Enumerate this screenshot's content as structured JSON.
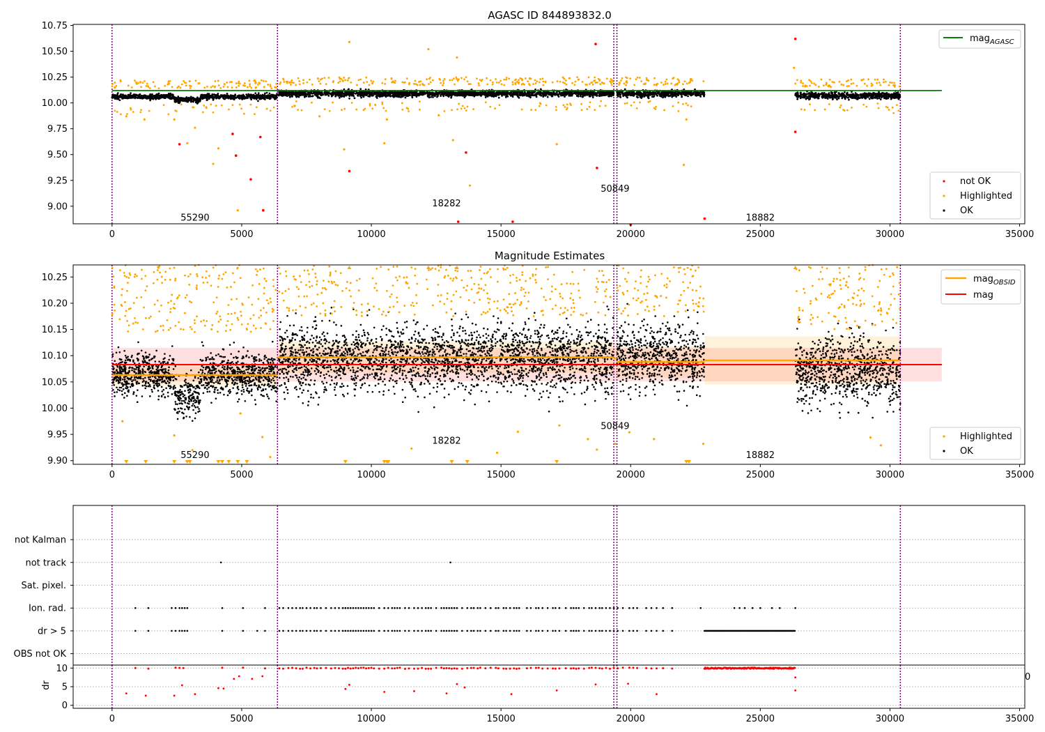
{
  "chart_data": [
    {
      "type": "scatter",
      "title": "AGASC ID 844893832.0",
      "xlim": [
        -1500,
        35200
      ],
      "ylim": [
        8.83,
        10.76
      ],
      "xticks": [
        0,
        5000,
        10000,
        15000,
        20000,
        25000,
        30000,
        35000
      ],
      "yticks": [
        9.0,
        9.25,
        9.5,
        9.75,
        10.0,
        10.25,
        10.5,
        10.75
      ],
      "ytick_labels": [
        "9.00",
        "9.25",
        "9.50",
        "9.75",
        "10.00",
        "10.25",
        "10.50",
        "10.75"
      ],
      "obs_boundaries": [
        0,
        6380,
        19350,
        19470,
        30400
      ],
      "obsid_labels": [
        {
          "text": "55290",
          "x": 3200,
          "y": 8.86
        },
        {
          "text": "18282",
          "x": 12900,
          "y": 9.0
        },
        {
          "text": "50849",
          "x": 19400,
          "y": 9.14
        },
        {
          "text": "18882",
          "x": 25000,
          "y": 8.86
        }
      ],
      "lines": [
        {
          "name": "mag_AGASC",
          "x": [
            0,
            32000
          ],
          "y": [
            10.12,
            10.12
          ],
          "color": "#008000"
        }
      ],
      "legend": [
        "not OK",
        "Highlighted",
        "OK"
      ],
      "not_ok_points": [
        [
          2600,
          9.6
        ],
        [
          4650,
          9.7
        ],
        [
          4780,
          9.49
        ],
        [
          5350,
          9.26
        ],
        [
          5720,
          9.67
        ],
        [
          5830,
          8.96
        ],
        [
          9150,
          9.34
        ],
        [
          13350,
          8.85
        ],
        [
          13650,
          9.52
        ],
        [
          15450,
          8.85
        ],
        [
          18650,
          10.57
        ],
        [
          18700,
          9.37
        ],
        [
          20000,
          8.82
        ],
        [
          22850,
          8.88
        ],
        [
          26350,
          10.62
        ],
        [
          26350,
          9.72
        ]
      ],
      "highlight_outliers": [
        [
          550,
          9.87
        ],
        [
          1250,
          9.84
        ],
        [
          2400,
          9.84
        ],
        [
          2900,
          9.61
        ],
        [
          3200,
          9.76
        ],
        [
          3900,
          9.41
        ],
        [
          4100,
          9.56
        ],
        [
          4850,
          8.96
        ],
        [
          8000,
          9.87
        ],
        [
          8950,
          9.55
        ],
        [
          9150,
          10.59
        ],
        [
          10500,
          9.61
        ],
        [
          10600,
          9.84
        ],
        [
          12200,
          10.52
        ],
        [
          12600,
          9.88
        ],
        [
          13150,
          9.64
        ],
        [
          13300,
          10.44
        ],
        [
          13800,
          9.2
        ],
        [
          17150,
          9.6
        ],
        [
          22050,
          9.4
        ],
        [
          22150,
          9.84
        ],
        [
          26300,
          10.34
        ]
      ],
      "segments": [
        {
          "x0": 0,
          "x1": 6380,
          "base": 10.06,
          "spread": 0.025,
          "dip": true
        },
        {
          "x0": 6420,
          "x1": 19350,
          "base": 10.09,
          "spread": 0.03
        },
        {
          "x0": 19470,
          "x1": 22850,
          "base": 10.09,
          "spread": 0.03
        },
        {
          "x0": 26350,
          "x1": 30400,
          "base": 10.07,
          "spread": 0.03
        }
      ]
    },
    {
      "type": "scatter",
      "title": "Magnitude Estimates",
      "xlim": [
        -1500,
        35200
      ],
      "ylim": [
        9.893,
        10.273
      ],
      "xticks": [
        0,
        5000,
        10000,
        15000,
        20000,
        25000,
        30000,
        35000
      ],
      "yticks": [
        9.9,
        9.95,
        10.0,
        10.05,
        10.1,
        10.15,
        10.2,
        10.25
      ],
      "ytick_labels": [
        "9.90",
        "9.95",
        "10.00",
        "10.05",
        "10.10",
        "10.15",
        "10.20",
        "10.25"
      ],
      "obsid_labels": [
        {
          "text": "55290",
          "x": 3200,
          "y": 9.905
        },
        {
          "text": "18282",
          "x": 12900,
          "y": 9.932
        },
        {
          "text": "50849",
          "x": 19400,
          "y": 9.96
        },
        {
          "text": "18882",
          "x": 25000,
          "y": 9.905
        }
      ],
      "mag": {
        "value": 10.083,
        "band": [
          10.051,
          10.115
        ],
        "x": [
          0,
          32000
        ]
      },
      "mag_obsid": [
        {
          "x0": 0,
          "x1": 6380,
          "y": 10.063,
          "band": [
            10.043,
            10.083
          ]
        },
        {
          "x0": 6380,
          "x1": 19350,
          "y": 10.097,
          "band": [
            10.067,
            10.127
          ]
        },
        {
          "x0": 19350,
          "x1": 19470,
          "y": 10.095,
          "band": [
            10.065,
            10.125
          ]
        },
        {
          "x0": 19470,
          "x1": 22850,
          "y": 10.088,
          "band": [
            10.058,
            10.118
          ]
        },
        {
          "x0": 22850,
          "x1": 30400,
          "y": 10.091,
          "band": [
            10.045,
            10.137
          ]
        }
      ],
      "legend_top": [
        "mag_OBSID",
        "mag"
      ],
      "legend_bottom": [
        "Highlighted",
        "OK"
      ],
      "low_markers_x": [
        550,
        1300,
        2400,
        2900,
        3000,
        4100,
        4250,
        4500,
        4850,
        5200,
        9000,
        10500,
        10600,
        10650,
        13100,
        13700,
        17150,
        22150,
        22250
      ],
      "high_markers_x": [
        9150,
        12200,
        13300,
        26350
      ],
      "highlight_outliers": [
        [
          400,
          9.975
        ],
        [
          2400,
          9.948
        ],
        [
          3100,
          9.92
        ],
        [
          4950,
          9.99
        ],
        [
          5800,
          9.945
        ],
        [
          6100,
          9.907
        ],
        [
          11550,
          9.923
        ],
        [
          14850,
          9.915
        ],
        [
          15650,
          9.955
        ],
        [
          17250,
          9.967
        ],
        [
          18350,
          9.941
        ],
        [
          18700,
          9.921
        ],
        [
          19400,
          9.932
        ],
        [
          19950,
          9.954
        ],
        [
          20900,
          9.941
        ],
        [
          22800,
          9.932
        ],
        [
          29250,
          9.944
        ],
        [
          29650,
          9.929
        ]
      ]
    },
    {
      "type": "scatter",
      "xlim": [
        -1500,
        35200
      ],
      "ylim": [
        -0.5,
        6.5
      ],
      "xticks": [
        0,
        5000,
        10000,
        15000,
        20000,
        25000,
        30000,
        35000
      ],
      "categories": [
        "OBS not OK",
        "dr > 5",
        "Ion. rad.",
        "Sat. pixel.",
        "not track",
        "not Kalman"
      ],
      "flag_points": {
        "not track": [
          4200,
          13050
        ],
        "Ion. rad.": [
          900,
          1400,
          2300,
          2450,
          2600,
          2700,
          2800,
          2900,
          4250,
          5050,
          5900,
          6450,
          6600,
          6800,
          6950,
          7100,
          7250,
          7350,
          7500,
          7650,
          7800,
          7900,
          8050,
          8250,
          8450,
          8600,
          8750,
          8900,
          9000,
          9100,
          9200,
          9300,
          9400,
          9500,
          9600,
          9700,
          9800,
          9900,
          10000,
          10100,
          10300,
          10500,
          10650,
          10800,
          10900,
          11000,
          11100,
          11300,
          11450,
          11650,
          11800,
          11950,
          12100,
          12200,
          12300,
          12500,
          12700,
          12800,
          12900,
          13000,
          13100,
          13200,
          13300,
          13500,
          13700,
          13850,
          13950,
          14100,
          14200,
          14400,
          14600,
          14800,
          14900,
          15100,
          15200,
          15350,
          15500,
          15600,
          15700,
          16000,
          16150,
          16350,
          16450,
          16600,
          16800,
          17000,
          17100,
          17250,
          17500,
          17700,
          17800,
          17900,
          18000,
          18200,
          18400,
          18500,
          18650,
          18800,
          18900,
          19050,
          19200,
          19350,
          19500,
          19700,
          19950,
          20100,
          20250,
          20600,
          20800,
          21000,
          21250,
          21600,
          22700,
          24000,
          24200,
          24400,
          24700,
          25000,
          25450,
          25750,
          26350
        ],
        "dr > 5": [
          900,
          1400,
          2300,
          2450,
          2600,
          2700,
          2800,
          2900,
          4250,
          5050,
          5600,
          5900,
          6450,
          6600,
          6800,
          6950,
          7100,
          7250,
          7350,
          7500,
          7650,
          7800,
          7900,
          8050,
          8250,
          8450,
          8600,
          8750,
          8900,
          9000,
          9100,
          9200,
          9300,
          9400,
          9500,
          9600,
          9700,
          9800,
          9900,
          10000,
          10100,
          10300,
          10500,
          10650,
          10800,
          10900,
          11000,
          11100,
          11300,
          11450,
          11650,
          11800,
          11950,
          12100,
          12200,
          12300,
          12500,
          12700,
          12800,
          12900,
          13000,
          13100,
          13200,
          13300,
          13500,
          13700,
          13850,
          13950,
          14100,
          14200,
          14400,
          14600,
          14800,
          14900,
          15100,
          15200,
          15350,
          15500,
          15600,
          15700,
          16000,
          16150,
          16350,
          16450,
          16600,
          16800,
          17000,
          17100,
          17250,
          17500,
          17700,
          17800,
          17900,
          18000,
          18200,
          18400,
          18500,
          18650,
          18800,
          18900,
          19050,
          19200,
          19350,
          19500,
          19700,
          19950,
          20100,
          20250,
          20600,
          20800,
          21000,
          21250,
          21600
        ],
        "dr > 5 range": [
          22850,
          26350
        ]
      }
    },
    {
      "type": "scatter",
      "ylabel": "dr",
      "xlim": [
        -1500,
        35200
      ],
      "ylim": [
        -0.8,
        10.8
      ],
      "xticks": [
        0,
        5000,
        10000,
        15000,
        20000,
        25000,
        30000,
        35000
      ],
      "xtick_labels": [
        "0",
        "5000",
        "10000",
        "15000",
        "20000",
        "25000",
        "30000",
        "35000"
      ],
      "yticks": [
        0,
        5,
        10
      ],
      "ytick_labels": [
        "0",
        "5",
        "10"
      ],
      "stray_label": "0",
      "high_dr_range": [
        22850,
        26350
      ],
      "high_dr_x": [
        900,
        1400,
        2450,
        2600,
        2750,
        4250,
        5050,
        5900,
        6450,
        6600,
        6800,
        6950,
        7100,
        7250,
        7350,
        7500,
        7650,
        7800,
        7900,
        8050,
        8250,
        8450,
        8600,
        8750,
        8900,
        9000,
        9100,
        9200,
        9300,
        9400,
        9500,
        9600,
        9700,
        9800,
        9900,
        10000,
        10100,
        10300,
        10500,
        10650,
        10800,
        10900,
        11000,
        11100,
        11300,
        11450,
        11650,
        11800,
        11950,
        12100,
        12200,
        12300,
        12500,
        12700,
        12800,
        12900,
        13000,
        13100,
        13200,
        13300,
        13500,
        13700,
        13850,
        13950,
        14100,
        14200,
        14400,
        14600,
        14800,
        14900,
        15100,
        15200,
        15350,
        15500,
        15600,
        15700,
        16000,
        16150,
        16350,
        16450,
        16600,
        16800,
        17000,
        17100,
        17250,
        17500,
        17700,
        17800,
        17900,
        18000,
        18200,
        18400,
        18500,
        18650,
        18800,
        18900,
        19050,
        19200,
        19350,
        19500,
        19700,
        19950,
        20100,
        20250,
        20600,
        20800,
        21000,
        21250,
        21600
      ],
      "mid_dr_points": [
        [
          550,
          3.2
        ],
        [
          1300,
          2.6
        ],
        [
          2400,
          2.6
        ],
        [
          2700,
          5.4
        ],
        [
          3200,
          3.0
        ],
        [
          4100,
          4.6
        ],
        [
          4300,
          4.5
        ],
        [
          4700,
          7.1
        ],
        [
          4900,
          7.8
        ],
        [
          5400,
          7.1
        ],
        [
          5800,
          7.8
        ],
        [
          9000,
          4.4
        ],
        [
          9150,
          5.5
        ],
        [
          10500,
          3.6
        ],
        [
          11650,
          3.8
        ],
        [
          12900,
          3.2
        ],
        [
          13300,
          5.7
        ],
        [
          13600,
          4.8
        ],
        [
          15400,
          3.0
        ],
        [
          17150,
          4.0
        ],
        [
          18650,
          5.6
        ],
        [
          19900,
          5.8
        ],
        [
          21000,
          3.0
        ],
        [
          26350,
          7.5
        ],
        [
          26350,
          4.0
        ]
      ],
      "segments": [
        [
          0,
          6380
        ],
        [
          6420,
          19350
        ],
        [
          19470,
          22850
        ],
        [
          26350,
          30400
        ]
      ]
    }
  ]
}
